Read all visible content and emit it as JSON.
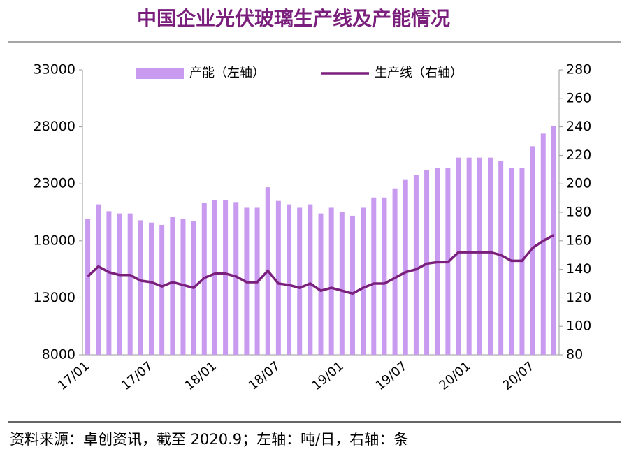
{
  "chart_data": {
    "type": "bar_line",
    "title": "中国企业光伏玻璃生产线及产能情况",
    "source": "资料来源：卓创资讯，截至 2020.9；左轴：吨/日，右轴：条",
    "categories": [
      "17/01",
      null,
      null,
      null,
      null,
      null,
      "17/07",
      null,
      null,
      null,
      null,
      null,
      "18/01",
      null,
      null,
      null,
      null,
      null,
      "18/07",
      null,
      null,
      null,
      null,
      null,
      "19/01",
      null,
      null,
      null,
      null,
      null,
      "19/07",
      null,
      null,
      null,
      null,
      null,
      "20/01",
      null,
      null,
      null,
      null,
      null,
      "20/07",
      null,
      null
    ],
    "series": [
      {
        "name": "产能（左轴）",
        "type": "bar",
        "axis": "y",
        "color": "#c99bf0",
        "values": [
          19900,
          21200,
          20600,
          20400,
          20400,
          19800,
          19600,
          19400,
          20100,
          19900,
          19700,
          21300,
          21600,
          21600,
          21400,
          20900,
          20900,
          22700,
          21500,
          21200,
          20900,
          21200,
          20400,
          20900,
          20500,
          20200,
          20900,
          21800,
          21800,
          22600,
          23400,
          23800,
          24200,
          24400,
          24400,
          25300,
          25300,
          25300,
          25300,
          25000,
          24400,
          24400,
          26300,
          27400,
          28100
        ]
      },
      {
        "name": "生产线（右轴）",
        "type": "line",
        "axis": "y2",
        "color": "#7a1f7c",
        "values": [
          135,
          142,
          138,
          136,
          136,
          132,
          131,
          128,
          131,
          129,
          127,
          134,
          137,
          137,
          135,
          131,
          131,
          139,
          130,
          129,
          127,
          130,
          125,
          127,
          125,
          123,
          127,
          130,
          130,
          134,
          138,
          140,
          144,
          145,
          145,
          152,
          152,
          152,
          152,
          150,
          146,
          146,
          155,
          160,
          164
        ]
      }
    ],
    "ylim": [
      8000,
      33000
    ],
    "yticks": [
      8000,
      13000,
      18000,
      23000,
      28000,
      33000
    ],
    "y2lim": [
      80,
      280
    ],
    "y2ticks": [
      80,
      100,
      120,
      140,
      160,
      180,
      200,
      220,
      240,
      260,
      280
    ],
    "legend": "top"
  }
}
